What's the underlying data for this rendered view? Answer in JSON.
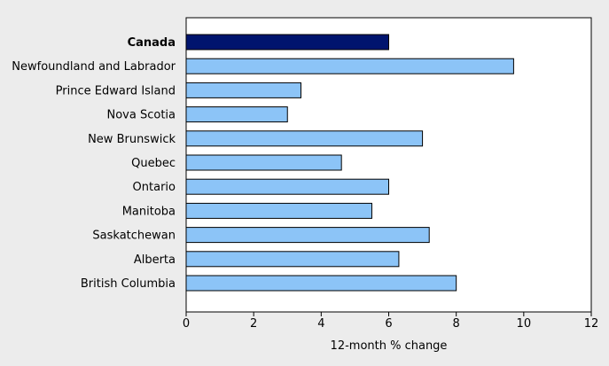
{
  "chart_data": {
    "type": "bar",
    "orientation": "horizontal",
    "title": "",
    "xlabel": "12-month % change",
    "ylabel": "",
    "xlim": [
      0,
      12
    ],
    "x_ticks": [
      0,
      2,
      4,
      6,
      8,
      10,
      12
    ],
    "categories": [
      "Canada",
      "Newfoundland and Labrador",
      "Prince Edward Island",
      "Nova Scotia",
      "New Brunswick",
      "Quebec",
      "Ontario",
      "Manitoba",
      "Saskatchewan",
      "Alberta",
      "British Columbia"
    ],
    "values": [
      6.0,
      9.7,
      3.4,
      3.0,
      7.0,
      4.6,
      6.0,
      5.5,
      7.2,
      6.3,
      8.0
    ],
    "highlight_index": 0,
    "colors": {
      "highlight": "#00146e",
      "bar": "#8cc4f7",
      "bar_stroke": "#000000",
      "plot_background": "#ffffff",
      "page_background": "#ececec"
    },
    "grid": false,
    "legend": "none"
  }
}
